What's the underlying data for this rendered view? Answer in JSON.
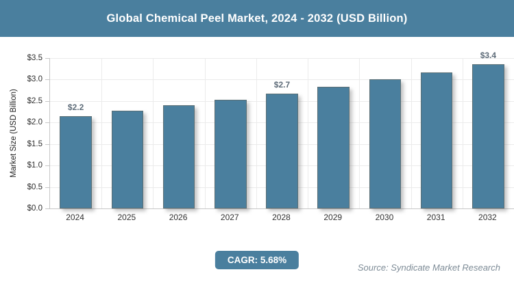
{
  "header": {
    "title": "Global Chemical Peel Market, 2024 - 2032 (USD Billion)"
  },
  "footer": {
    "cagr_label": "CAGR: 5.68%",
    "source": "Source: Syndicate Market Research"
  },
  "colors": {
    "accent": "#4A7F9E",
    "grid": "#ebebeb",
    "axis": "#c6c6c6",
    "data_label": "#5d6b78",
    "source_text": "#7e8c97"
  },
  "chart_data": {
    "type": "bar",
    "title": "Global Chemical Peel Market, 2024 - 2032 (USD Billion)",
    "xlabel": "",
    "ylabel": "Market Size (USD Billion)",
    "categories": [
      "2024",
      "2025",
      "2026",
      "2027",
      "2028",
      "2029",
      "2030",
      "2031",
      "2032"
    ],
    "values": [
      2.15,
      2.27,
      2.4,
      2.53,
      2.68,
      2.83,
      3.0,
      3.17,
      3.35
    ],
    "bar_labels": [
      "$2.2",
      "",
      "",
      "",
      "$2.7",
      "",
      "",
      "",
      "$3.4"
    ],
    "ylim": [
      0,
      3.5
    ],
    "ytick_values": [
      0,
      0.5,
      1,
      1.5,
      2,
      2.5,
      3,
      3.5
    ],
    "ytick_labels": [
      "$0.0",
      "$0.5",
      "$1.0",
      "$1.5",
      "$2.0",
      "$2.5",
      "$3.0",
      "$3.5"
    ],
    "grid": true,
    "legend": "none",
    "annotations": {
      "cagr": "CAGR: 5.68%",
      "source": "Source: Syndicate Market Research"
    }
  }
}
